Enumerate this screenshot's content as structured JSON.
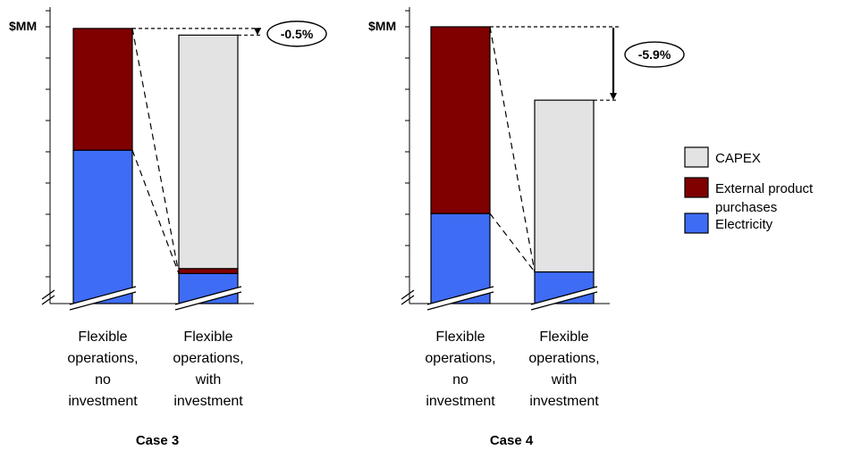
{
  "colors": {
    "capex": "#e3e3e3",
    "external": "#800000",
    "electricity": "#3f6cf5",
    "axis": "#000000"
  },
  "legend": {
    "placement": "right",
    "items": [
      {
        "key": "capex",
        "lines": [
          "CAPEX"
        ]
      },
      {
        "key": "external",
        "lines": [
          "External product",
          "purchases"
        ]
      },
      {
        "key": "electricity",
        "lines": [
          "Electricity"
        ]
      }
    ]
  },
  "chart_data": [
    {
      "type": "bar",
      "stacked": true,
      "ylabel": "$MM",
      "ylim": [
        0,
        8.3
      ],
      "ytick_count": 9,
      "broken_axis": true,
      "title": "Case 3",
      "categories": [
        [
          "Flexible",
          "operations,",
          "no",
          "investment"
        ],
        [
          "Flexible",
          "operations,",
          "with",
          "investment"
        ]
      ],
      "series": [
        {
          "name": "Electricity",
          "key": "electricity",
          "values": [
            4.6,
            0.9
          ]
        },
        {
          "name": "External product purchases",
          "key": "external",
          "values": [
            3.65,
            0.15
          ]
        },
        {
          "name": "CAPEX",
          "key": "capex",
          "values": [
            0,
            7.0
          ]
        }
      ],
      "annotation": {
        "label": "-0.5%",
        "style": "dotted"
      }
    },
    {
      "type": "bar",
      "stacked": true,
      "ylabel": "$MM",
      "ylim": [
        0,
        8.3
      ],
      "ytick_count": 9,
      "broken_axis": true,
      "title": "Case 4",
      "categories": [
        [
          "Flexible",
          "operations,",
          "no",
          "investment"
        ],
        [
          "Flexible",
          "operations,",
          "with",
          "investment"
        ]
      ],
      "series": [
        {
          "name": "Electricity",
          "key": "electricity",
          "values": [
            2.7,
            0.95
          ]
        },
        {
          "name": "External product purchases",
          "key": "external",
          "values": [
            5.6,
            0
          ]
        },
        {
          "name": "CAPEX",
          "key": "capex",
          "values": [
            0,
            5.15
          ]
        }
      ],
      "annotation": {
        "label": "-5.9%",
        "style": "solid"
      }
    }
  ]
}
